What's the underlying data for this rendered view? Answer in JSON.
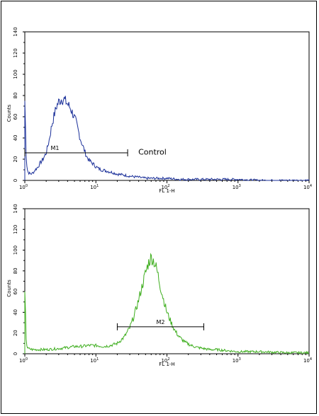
{
  "chart_data": [
    {
      "type": "line",
      "panel": "top",
      "xlabel": "FL 1-H",
      "ylabel": "Counts",
      "xscale": "log",
      "xlim": [
        1,
        10000
      ],
      "ylim": [
        0,
        140
      ],
      "y_ticks": [
        0,
        20,
        40,
        60,
        80,
        100,
        120,
        140
      ],
      "x_ticks": [
        {
          "base": "10",
          "exp": "0"
        },
        {
          "base": "10",
          "exp": "1"
        },
        {
          "base": "10",
          "exp": "2"
        },
        {
          "base": "10",
          "exp": "3"
        },
        {
          "base": "10",
          "exp": "4"
        }
      ],
      "color": "#1a2f99",
      "series": [
        {
          "x": [
            1.0,
            1.05,
            1.1,
            1.2,
            1.3,
            1.4,
            1.5,
            1.6,
            1.8,
            2.0,
            2.2,
            2.4,
            2.6,
            2.8,
            3.0,
            3.3,
            3.6,
            4.0,
            4.4,
            4.8,
            5.2,
            5.6,
            6.0,
            6.5,
            7.0,
            7.5,
            8.0,
            9.0,
            10.0,
            11,
            12,
            14,
            16,
            18,
            20,
            25,
            30,
            40,
            50,
            70,
            100,
            150,
            200,
            300,
            500,
            1000,
            2000,
            10000
          ],
          "y": [
            75,
            18,
            8,
            6,
            7,
            10,
            12,
            15,
            20,
            26,
            38,
            52,
            62,
            70,
            74,
            77,
            76,
            72,
            68,
            62,
            56,
            48,
            40,
            33,
            27,
            22,
            19,
            16,
            13,
            11,
            10,
            9,
            8,
            7,
            6,
            5,
            4,
            3,
            2,
            2,
            2,
            1,
            1,
            1,
            1,
            1,
            0,
            0
          ]
        }
      ],
      "gate": {
        "label": "M1",
        "x_start": 1.0,
        "x_end": 28,
        "y": 26
      },
      "annotation": {
        "text": "Control",
        "x": 30,
        "y": 27
      }
    },
    {
      "type": "line",
      "panel": "bottom",
      "xlabel": "FL 1-H",
      "ylabel": "Counts",
      "xscale": "log",
      "xlim": [
        1,
        10000
      ],
      "ylim": [
        0,
        140
      ],
      "y_ticks": [
        0,
        20,
        40,
        60,
        80,
        100,
        120,
        140
      ],
      "x_ticks": [
        {
          "base": "10",
          "exp": "0"
        },
        {
          "base": "10",
          "exp": "1"
        },
        {
          "base": "10",
          "exp": "2"
        },
        {
          "base": "10",
          "exp": "3"
        },
        {
          "base": "10",
          "exp": "4"
        }
      ],
      "color": "#3fae1f",
      "series": [
        {
          "x": [
            1.0,
            1.05,
            1.1,
            1.3,
            1.6,
            2.0,
            3.0,
            4.0,
            5.0,
            6.0,
            8.0,
            10,
            13,
            16,
            20,
            25,
            30,
            35,
            40,
            45,
            50,
            55,
            60,
            65,
            70,
            75,
            80,
            90,
            100,
            115,
            130,
            150,
            180,
            220,
            270,
            330,
            400,
            500,
            700,
            1000,
            2000,
            5000,
            10000
          ],
          "y": [
            60,
            10,
            5,
            4,
            4,
            4,
            5,
            6,
            7,
            7,
            8,
            8,
            7,
            8,
            10,
            16,
            25,
            38,
            52,
            66,
            78,
            88,
            93,
            90,
            84,
            76,
            66,
            52,
            40,
            30,
            22,
            16,
            11,
            8,
            6,
            5,
            4,
            4,
            3,
            2,
            2,
            1,
            1
          ]
        }
      ],
      "gate": {
        "label": "M2",
        "x_start": 20,
        "x_end": 330,
        "y": 26
      },
      "annotation": null
    }
  ]
}
